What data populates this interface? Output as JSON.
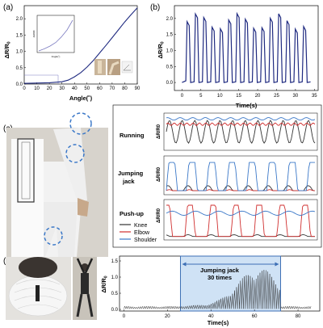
{
  "panels": {
    "a": "(a)",
    "b": "(b)",
    "c": "(c)",
    "d": "(d)"
  },
  "colors": {
    "knee": "#333333",
    "elbow": "#d03030",
    "shoulder": "#3b78c8",
    "navy": "#1f2a80",
    "inset": "#7a7ac0",
    "box_fill": "#cfe2f5",
    "box_edge": "#3d6fb5"
  },
  "chart_data": [
    {
      "id": "a",
      "type": "line",
      "xlabel": "Angle(˚)",
      "ylabel": "ΔR/R0",
      "xlim": [
        0,
        90
      ],
      "ylim": [
        0,
        2.4
      ],
      "xticks": [
        "0",
        "10",
        "20",
        "30",
        "40",
        "50",
        "60",
        "70",
        "80",
        "90"
      ],
      "yticks": [
        "0.0",
        "0.5",
        "1.0",
        "1.5",
        "2.0"
      ],
      "x": [
        0,
        10,
        20,
        30,
        35,
        40,
        45,
        50,
        55,
        60,
        65,
        70,
        75,
        80,
        85,
        90
      ],
      "y": [
        0.02,
        0.03,
        0.04,
        0.07,
        0.12,
        0.22,
        0.35,
        0.52,
        0.72,
        0.95,
        1.18,
        1.42,
        1.66,
        1.9,
        2.12,
        2.33
      ],
      "inset": {
        "xlabel": "Angle(˚)",
        "ylabel": "ΔR/R0",
        "x": [
          0,
          10,
          20,
          30,
          40,
          50,
          60
        ],
        "y": [
          0.0,
          0.015,
          0.035,
          0.06,
          0.1,
          0.15,
          0.22
        ]
      }
    },
    {
      "id": "b",
      "type": "line",
      "xlabel": "Time(s)",
      "ylabel": "ΔR/R0",
      "xlim": [
        -2,
        36
      ],
      "ylim": [
        -0.25,
        2.4
      ],
      "xticks": [
        "0",
        "5",
        "10",
        "15",
        "20",
        "25",
        "30",
        "35"
      ],
      "yticks": [
        "0.0",
        "0.5",
        "1.0",
        "1.5",
        "2.0"
      ],
      "cycles": {
        "start": 1.0,
        "period": 2.2,
        "count": 15,
        "low": 0.0,
        "high": 1.9
      }
    },
    {
      "id": "c",
      "type": "line",
      "ylabel": "ΔR/R0",
      "legend": [
        "Knee",
        "Elbow",
        "Shoulder"
      ],
      "legend_position": "left",
      "motions": [
        {
          "name": "Running",
          "knee_high": 0.9,
          "elbow_level": 0.75,
          "shoulder_level": 0.92,
          "period": 0.085
        },
        {
          "name": "Jumping jack",
          "knee_high": 0.15,
          "elbow_level": 0.05,
          "shoulder_high": 0.85,
          "period": 0.135
        },
        {
          "name": "Push-up",
          "knee_high": 0.05,
          "elbow_high": 0.9,
          "shoulder_level": 0.7,
          "period": 0.155
        }
      ]
    },
    {
      "id": "d",
      "type": "line",
      "xlabel": "Time(s)",
      "ylabel": "ΔR/R0",
      "xlim": [
        -2,
        90
      ],
      "ylim": [
        -0.05,
        1.65
      ],
      "xticks": [
        "0",
        "20",
        "40",
        "60",
        "80"
      ],
      "yticks": [
        "0.0",
        "0.5",
        "1.0",
        "1.5"
      ],
      "annotation": {
        "text": "Jumping jack\n30 times",
        "x_start": 26,
        "x_end": 72
      },
      "baseline_amplitude": 0.1,
      "peak_amplitude": 1.28,
      "peak_at": 62
    }
  ],
  "texts": {
    "c_running": "Running",
    "c_jumping": "Jumping jack",
    "c_jumping_line1": "Jumping",
    "c_jumping_line2": "jack",
    "c_pushup": "Push-up",
    "legend_knee": "Knee",
    "legend_elbow": "Elbow",
    "legend_shoulder": "Shoulder",
    "d_annot_line1": "Jumping jack",
    "d_annot_line2": "30 times",
    "a_xlabel": "Angle(˚)",
    "b_xlabel": "Time(s)",
    "d_xlabel": "Time(s)",
    "ylabel_main": "ΔR/R0"
  }
}
